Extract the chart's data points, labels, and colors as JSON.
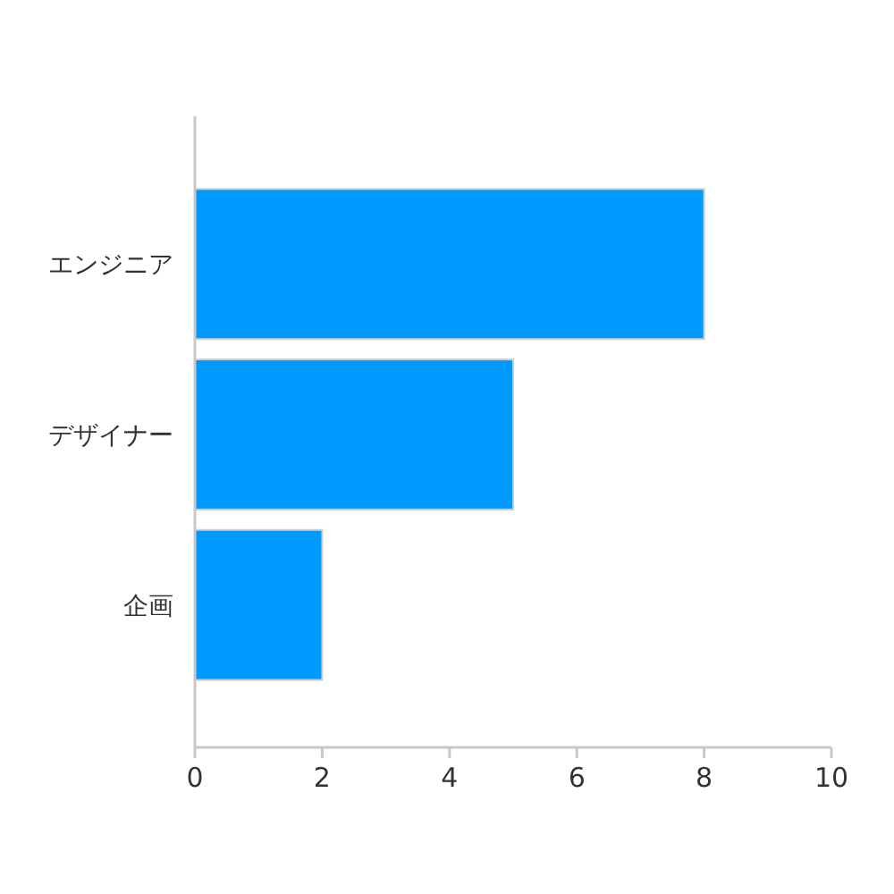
{
  "chart_data": {
    "type": "bar",
    "orientation": "horizontal",
    "categories": [
      "エンジニア",
      "デザイナー",
      "企画"
    ],
    "values": [
      8,
      5,
      2
    ],
    "color": "#0099ff",
    "xlim": [
      0,
      10
    ],
    "xticks": [
      0,
      2,
      4,
      6,
      8,
      10
    ],
    "grid": false
  }
}
